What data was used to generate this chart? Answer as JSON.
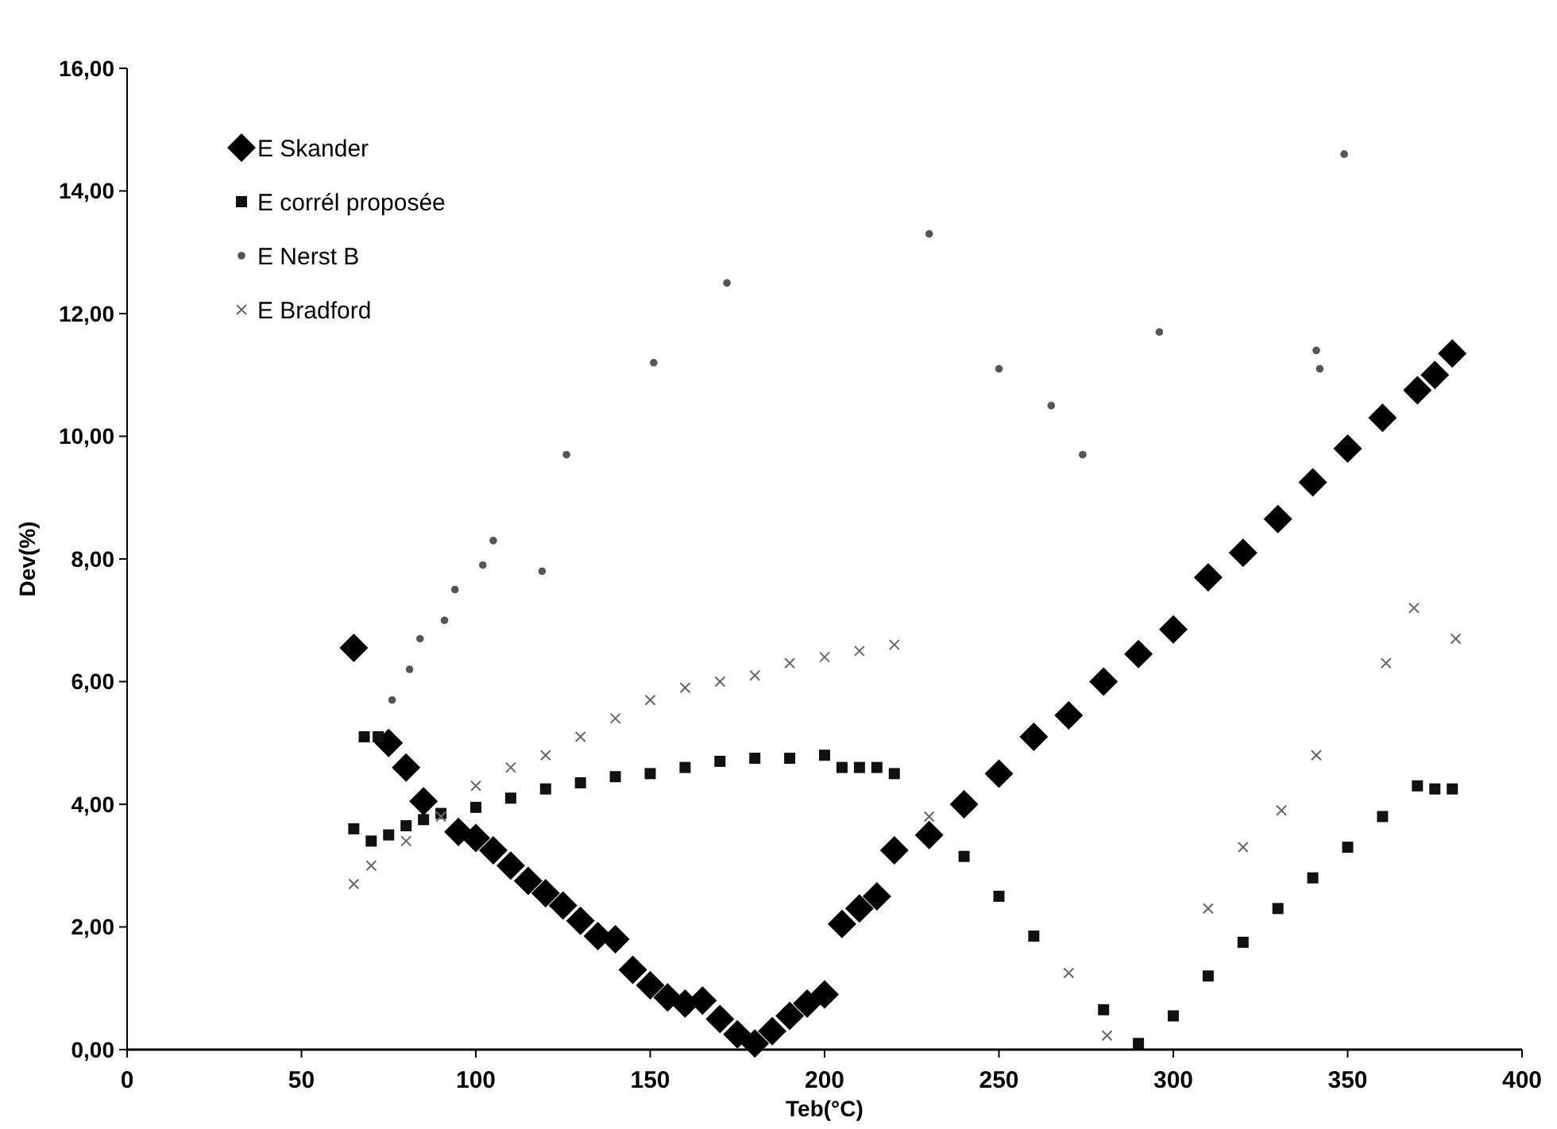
{
  "chart_data": {
    "type": "scatter",
    "xlabel": "Teb(°C)",
    "ylabel": "Dev(%)",
    "xlim": [
      0,
      400
    ],
    "ylim": [
      0,
      16
    ],
    "xticks": [
      0,
      50,
      100,
      150,
      200,
      250,
      300,
      350,
      400
    ],
    "yticks": [
      {
        "value": 0,
        "label": "0,00"
      },
      {
        "value": 2,
        "label": "2,00"
      },
      {
        "value": 4,
        "label": "4,00"
      },
      {
        "value": 6,
        "label": "6,00"
      },
      {
        "value": 8,
        "label": "8,00"
      },
      {
        "value": 10,
        "label": "10,00"
      },
      {
        "value": 12,
        "label": "12,00"
      },
      {
        "value": 14,
        "label": "14,00"
      },
      {
        "value": 16,
        "label": "16,00"
      }
    ],
    "grid": false,
    "legend": "top left",
    "series": [
      {
        "name": "E Skander",
        "color": "#000000",
        "marker": "diamond",
        "x": [
          65,
          75,
          80,
          85,
          95,
          100,
          105,
          110,
          115,
          120,
          125,
          130,
          135,
          140,
          145,
          150,
          155,
          160,
          165,
          170,
          175,
          180,
          185,
          190,
          195,
          200,
          205,
          210,
          215,
          220,
          230,
          240,
          250,
          260,
          270,
          280,
          290,
          300,
          310,
          320,
          330,
          340,
          350,
          360,
          370,
          375,
          380
        ],
        "values": [
          6.55,
          5.0,
          4.6,
          4.05,
          3.55,
          3.45,
          3.25,
          3.0,
          2.75,
          2.55,
          2.35,
          2.1,
          1.85,
          1.8,
          1.3,
          1.05,
          0.85,
          0.75,
          0.8,
          0.5,
          0.25,
          0.1,
          0.3,
          0.55,
          0.75,
          0.9,
          2.05,
          2.3,
          2.5,
          3.25,
          3.5,
          4.0,
          4.5,
          5.1,
          5.45,
          6.0,
          6.45,
          6.85,
          7.7,
          8.1,
          8.65,
          9.25,
          9.8,
          10.3,
          10.75,
          11.0,
          11.35
        ]
      },
      {
        "name": "E corrél proposée",
        "color": "#111111",
        "marker": "square",
        "x": [
          65,
          68,
          70,
          72,
          75,
          80,
          85,
          90,
          100,
          110,
          120,
          130,
          140,
          150,
          160,
          170,
          180,
          190,
          200,
          205,
          210,
          215,
          220,
          240,
          250,
          260,
          280,
          290,
          300,
          310,
          320,
          330,
          340,
          350,
          360,
          370,
          375,
          380
        ],
        "values": [
          3.6,
          5.1,
          3.4,
          5.1,
          3.5,
          3.65,
          3.75,
          3.85,
          3.95,
          4.1,
          4.25,
          4.35,
          4.45,
          4.5,
          4.6,
          4.7,
          4.75,
          4.75,
          4.8,
          4.6,
          4.6,
          4.6,
          4.5,
          3.15,
          2.5,
          1.85,
          0.65,
          0.1,
          0.55,
          1.2,
          1.75,
          2.3,
          2.8,
          3.3,
          3.8,
          4.3,
          4.25,
          4.25
        ]
      },
      {
        "name": "E Nerst B",
        "color": "#555555",
        "marker": "circle",
        "x": [
          76,
          81,
          84,
          91,
          94,
          102,
          105,
          119,
          126,
          151,
          172,
          230,
          250,
          265,
          274,
          296,
          341,
          342,
          349
        ],
        "values": [
          5.7,
          6.2,
          6.7,
          7.0,
          7.5,
          7.9,
          8.3,
          7.8,
          9.7,
          11.2,
          12.5,
          13.3,
          11.1,
          10.5,
          9.7,
          11.7,
          11.4,
          11.1,
          14.6
        ]
      },
      {
        "name": "E Bradford",
        "color": "#666666",
        "marker": "cross",
        "x": [
          65,
          70,
          80,
          90,
          100,
          110,
          120,
          130,
          140,
          150,
          160,
          170,
          180,
          190,
          200,
          210,
          220,
          230,
          270,
          281,
          310,
          320,
          331,
          341,
          361,
          369,
          381
        ],
        "values": [
          2.7,
          3.0,
          3.4,
          3.8,
          4.3,
          4.6,
          4.8,
          5.1,
          5.4,
          5.7,
          5.9,
          6.0,
          6.1,
          6.3,
          6.4,
          6.5,
          6.6,
          3.8,
          1.25,
          0.23,
          2.3,
          3.3,
          3.9,
          4.8,
          6.3,
          7.2,
          6.7
        ]
      }
    ]
  }
}
